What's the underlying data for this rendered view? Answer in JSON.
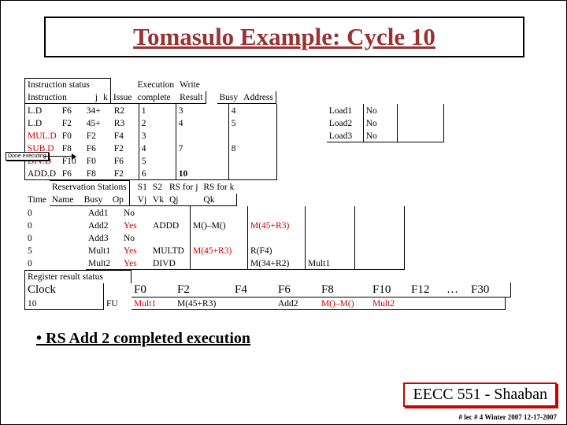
{
  "title": "Tomasulo Example:  Cycle 10",
  "colors": {
    "title": "#993333",
    "red": "#cc0000",
    "border": "#000000"
  },
  "instr_status": {
    "header": [
      "Instruction status",
      "",
      "",
      "",
      "Execution",
      "Write"
    ],
    "header2": [
      "Instruction",
      "j",
      "k",
      "Issue",
      "complete",
      "Result",
      "Busy",
      "Address"
    ],
    "rows": [
      {
        "inst": "L.D",
        "f": "F6",
        "j": "34+",
        "k": "R2",
        "issue": "1",
        "exec": "3",
        "wr": "4",
        "load": "Load1",
        "busy": "No"
      },
      {
        "inst": "L.D",
        "f": "F2",
        "j": "45+",
        "k": "R3",
        "issue": "2",
        "exec": "4",
        "wr": "5",
        "load": "Load2",
        "busy": "No"
      },
      {
        "inst": "MUL.D",
        "f": "F0",
        "j": "F2",
        "k": "F4",
        "issue": "3",
        "exec": "",
        "wr": "",
        "load": "Load3",
        "busy": "No",
        "red": true
      },
      {
        "inst": "SUB.D",
        "f": "F8",
        "j": "F6",
        "k": "F2",
        "issue": "4",
        "exec": "7",
        "wr": "8",
        "red": true
      },
      {
        "inst": "DIV.D",
        "f": "F10",
        "j": "F0",
        "k": "F6",
        "issue": "5",
        "exec": "",
        "wr": "",
        "red": true
      },
      {
        "inst": "ADD.D",
        "f": "F6",
        "j": "F8",
        "k": "F2",
        "issue": "6",
        "exec": "10",
        "wr": ""
      }
    ]
  },
  "res_stations": {
    "header": [
      "Reservation Stations",
      "",
      "",
      "S1",
      "S2",
      "RS for j",
      "RS for k"
    ],
    "header2": [
      "Time",
      "Name",
      "Busy",
      "Op",
      "Vj",
      "Vk",
      "Qj",
      "Qk"
    ],
    "rows": [
      {
        "t": "0",
        "name": "Add1",
        "busy": "No"
      },
      {
        "t": "0",
        "name": "Add2",
        "busy": "Yes",
        "op": "ADDD",
        "vj": "M()–M()",
        "vk": "M(45+R3)",
        "vkred": true
      },
      {
        "t": "0",
        "name": "Add3",
        "busy": "No"
      },
      {
        "t": "5",
        "name": "Mult1",
        "busy": "Yes",
        "op": "MULTD",
        "vj": "M(45+R3)",
        "vjred": true,
        "vk": "R(F4)"
      },
      {
        "t": "0",
        "name": "Mult2",
        "busy": "Yes",
        "op": "DIVD",
        "vk": "M(34+R2)",
        "qj": "Mult1"
      }
    ]
  },
  "reg_status": {
    "label": "Register result status",
    "clock_label": "Clock",
    "clock_val": "10",
    "fu_label": "FU",
    "regs": [
      "F0",
      "F2",
      "F4",
      "F6",
      "F8",
      "F10",
      "F12",
      "…",
      "F30"
    ],
    "vals": [
      "Mult1",
      "M(45+R3)",
      "",
      "Add2",
      "M()–M()",
      "Mult2",
      "",
      "",
      ""
    ]
  },
  "done": "Done executing",
  "bullet": "• RS Add 2 completed execution",
  "course": "EECC 551 - Shaaban",
  "lec": "#  lec # 4  Winter 2007   12-17-2007"
}
